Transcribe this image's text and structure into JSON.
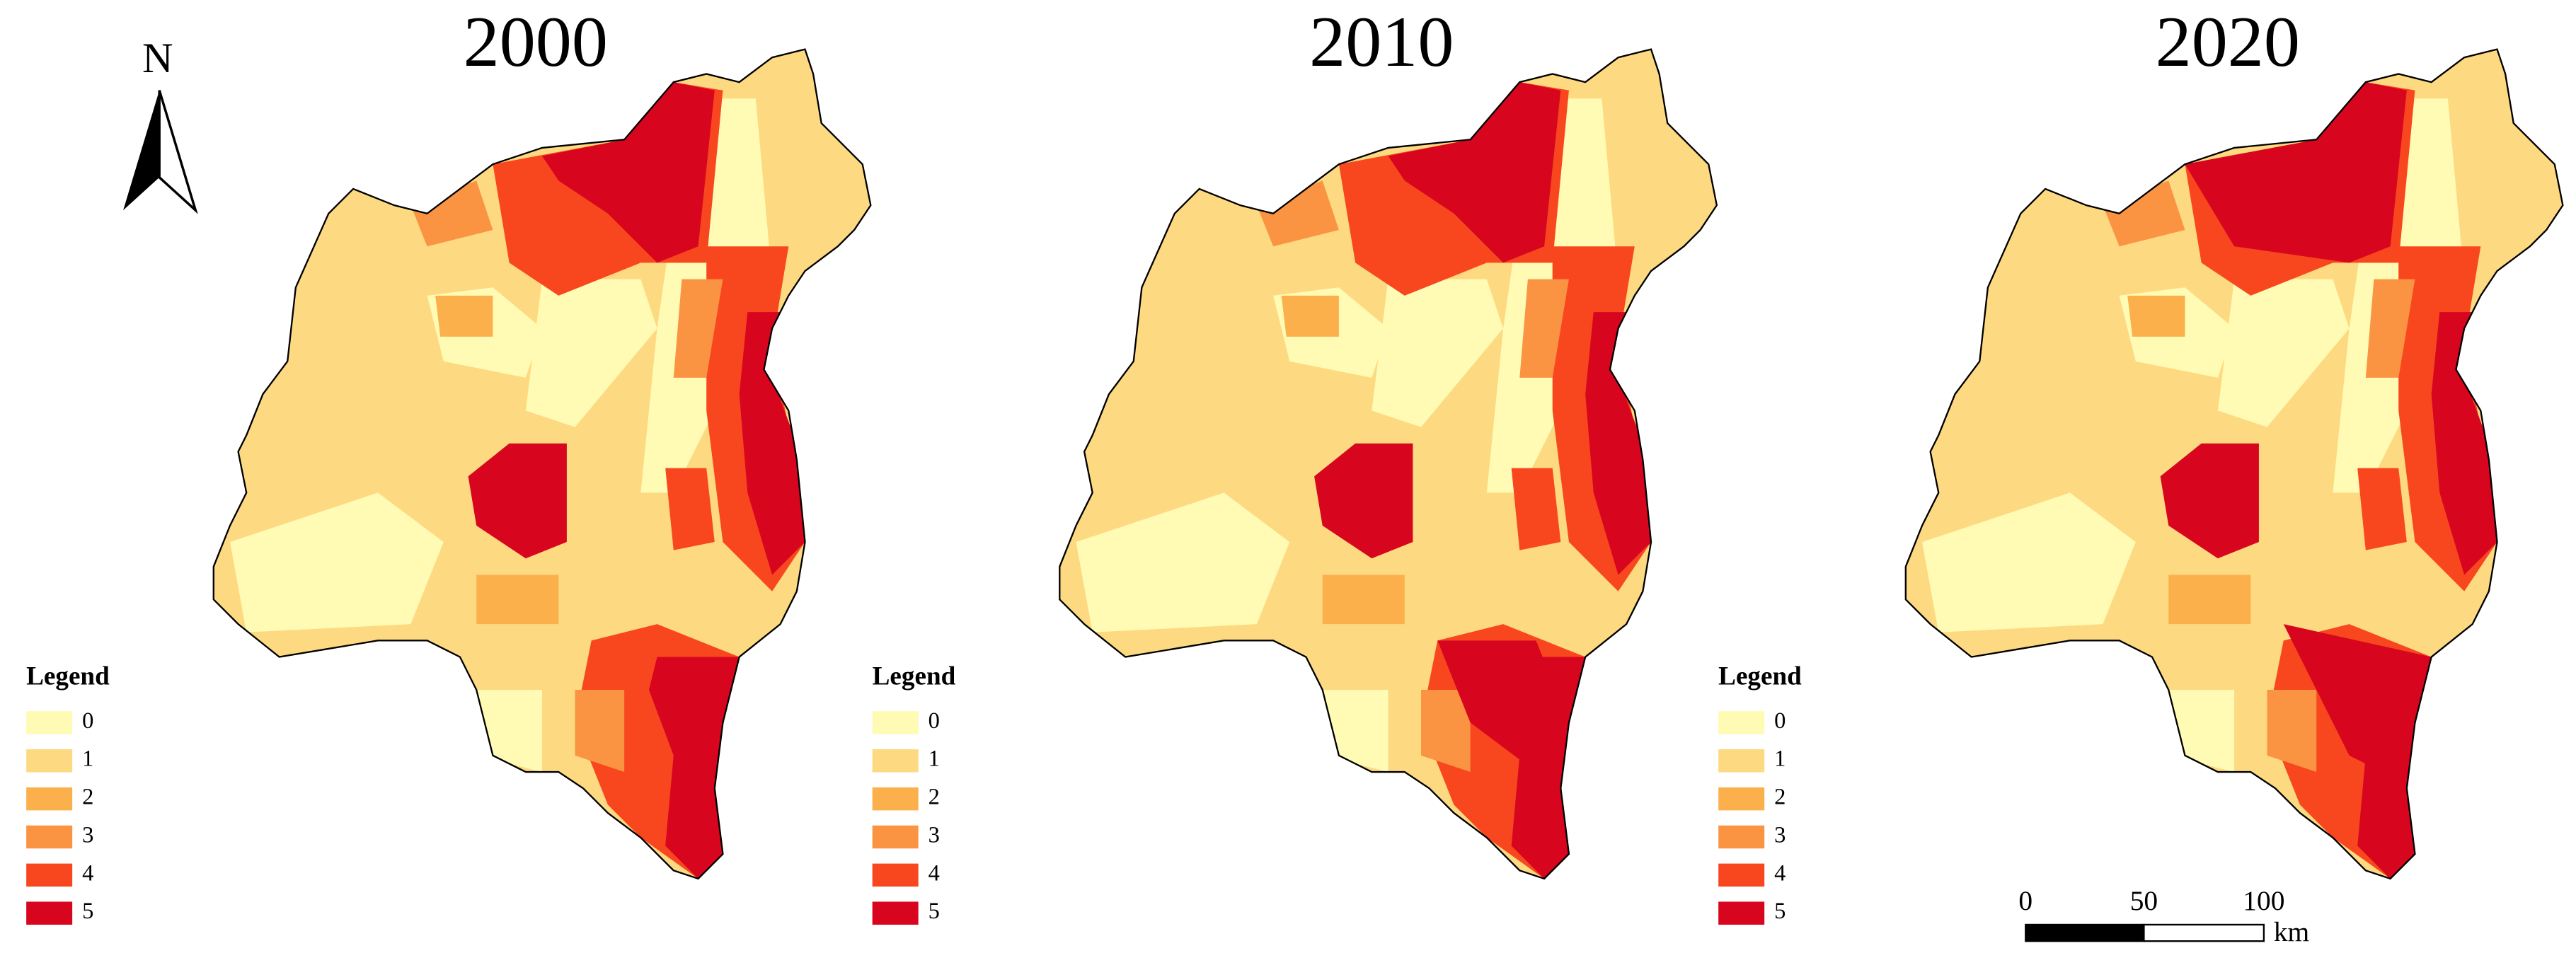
{
  "panels": [
    {
      "title": "2000"
    },
    {
      "title": "2010"
    },
    {
      "title": "2020"
    }
  ],
  "legend": {
    "title": "Legend",
    "items": [
      {
        "label": "0",
        "color": "#fffbb4"
      },
      {
        "label": "1",
        "color": "#fdd982"
      },
      {
        "label": "2",
        "color": "#fcb04c"
      },
      {
        "label": "3",
        "color": "#fb9442"
      },
      {
        "label": "4",
        "color": "#f8471f"
      },
      {
        "label": "5",
        "color": "#d7061e"
      }
    ]
  },
  "north_arrow": {
    "label": "N"
  },
  "scale_bar": {
    "labels": [
      "0",
      "50",
      "100"
    ],
    "unit": "km"
  }
}
